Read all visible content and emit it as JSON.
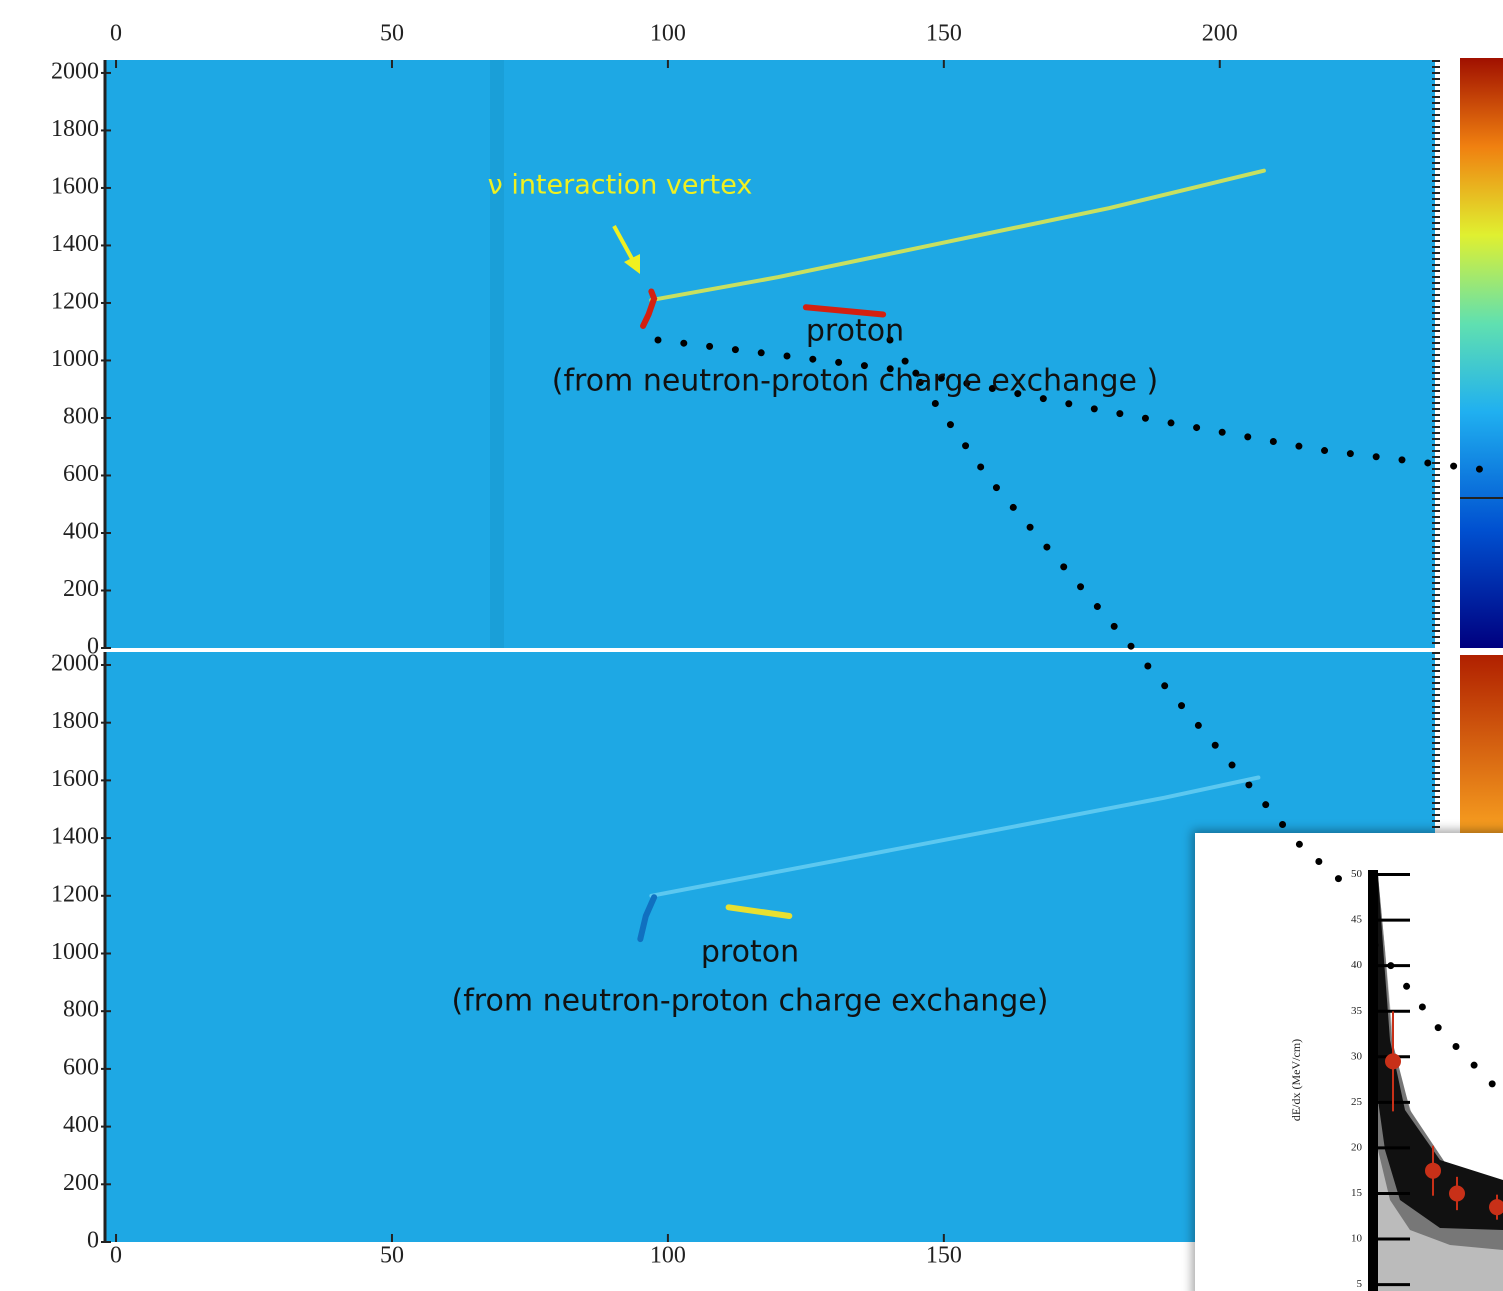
{
  "chart_data": [
    {
      "type": "event-display",
      "xlim": [
        -2,
        239
      ],
      "ylim": [
        0,
        2045
      ],
      "xticks": [
        0,
        50,
        100,
        150,
        200
      ],
      "yticks": [
        0,
        200,
        400,
        600,
        800,
        1000,
        1200,
        1400,
        1600,
        1800,
        2000
      ],
      "annotations": [
        "ν interaction vertex",
        "proton",
        "(from neutron-proton charge exchange )"
      ],
      "series": [
        {
          "color": "#c8e060",
          "x": [
            97,
            120,
            150,
            180,
            208
          ],
          "values": [
            1210,
            1290,
            1410,
            1530,
            1660
          ]
        },
        {
          "color": "#d42010",
          "x": [
            95.5,
            96.5,
            97.5,
            97
          ],
          "values": [
            1120,
            1160,
            1215,
            1240
          ]
        },
        {
          "color": "#d42010",
          "x": [
            125,
            139
          ],
          "values": [
            1185,
            1160
          ]
        }
      ]
    },
    {
      "type": "event-display",
      "xlim": [
        -2,
        239
      ],
      "ylim": [
        0,
        2045
      ],
      "xticks": [
        0,
        50,
        100,
        150
      ],
      "yticks": [
        0,
        200,
        400,
        600,
        800,
        1000,
        1200,
        1400,
        1600,
        1800,
        2000
      ],
      "annotations": [
        "proton",
        "(from neutron-proton charge exchange)"
      ],
      "series": [
        {
          "color": "#5cc8f0",
          "x": [
            97,
            130,
            160,
            190,
            207
          ],
          "values": [
            1200,
            1320,
            1430,
            1540,
            1610
          ]
        },
        {
          "color": "#1070c0",
          "x": [
            95,
            96,
            97.5
          ],
          "values": [
            1050,
            1130,
            1195
          ]
        },
        {
          "color": "#e8e030",
          "x": [
            111,
            122
          ],
          "values": [
            1160,
            1130
          ]
        }
      ]
    },
    {
      "type": "scatter",
      "ylabel": "dE/dx (MeV/cm)",
      "ylim": [
        4.3,
        50.5
      ],
      "yticks": [
        5,
        10,
        15,
        20,
        25,
        30,
        35,
        40,
        45,
        50
      ],
      "categories": [
        null,
        null,
        null,
        null
      ],
      "values": [
        29.5,
        17.5,
        15,
        13.5
      ],
      "color": "#c83018"
    }
  ]
}
